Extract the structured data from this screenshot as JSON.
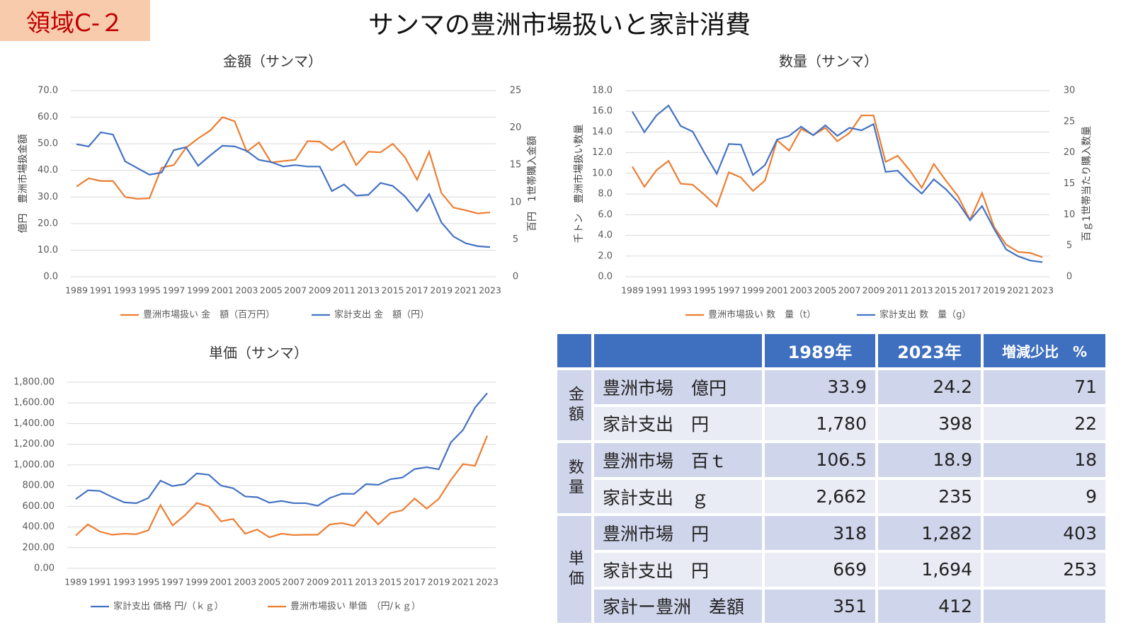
{
  "header": {
    "badge": "領域C-２",
    "title": "サンマの豊洲市場扱いと家計消費"
  },
  "chart_data": [
    {
      "type": "line",
      "title": "金額（サンマ）",
      "y_label": "億円　豊洲市場扱金額",
      "y2_label": "百円　1世帯購入金額",
      "x": [
        1989,
        1990,
        1991,
        1992,
        1993,
        1994,
        1995,
        1996,
        1997,
        1998,
        1999,
        2000,
        2001,
        2002,
        2003,
        2004,
        2005,
        2006,
        2007,
        2008,
        2009,
        2010,
        2011,
        2012,
        2013,
        2014,
        2015,
        2016,
        2017,
        2018,
        2019,
        2020,
        2021,
        2022,
        2023
      ],
      "xlim": [
        1989,
        2023
      ],
      "xticks": [
        1989,
        1991,
        1993,
        1995,
        1997,
        1999,
        2001,
        2003,
        2005,
        2007,
        2009,
        2011,
        2013,
        2015,
        2017,
        2019,
        2021,
        2023
      ],
      "ylim": [
        0,
        70
      ],
      "yticks": [
        {
          "value": 0,
          "label": "0.0"
        },
        {
          "value": 10,
          "label": "10.0"
        },
        {
          "value": 20,
          "label": "20.0"
        },
        {
          "value": 30,
          "label": "30.0"
        },
        {
          "value": 40,
          "label": "40.0"
        },
        {
          "value": 50,
          "label": "50.0"
        },
        {
          "value": 60,
          "label": "60.0"
        },
        {
          "value": 70,
          "label": "70.0"
        }
      ],
      "y2lim": [
        0,
        25
      ],
      "y2ticks": [
        0,
        5,
        10,
        15,
        20,
        25
      ],
      "grid": true,
      "series": [
        {
          "name": "豊洲市場扱い 金　額（百万円）",
          "color": "#ed7d31",
          "values": [
            33.9,
            37,
            36,
            36,
            30,
            29.3,
            29.5,
            41,
            42,
            48.5,
            52,
            55,
            60,
            58.5,
            47,
            50.5,
            43,
            43.5,
            44,
            51,
            50.8,
            47.5,
            51,
            42,
            47,
            46.8,
            50,
            45,
            36.5,
            47,
            31.5,
            26,
            25,
            23.8,
            24.2
          ]
        },
        {
          "name": "家計支出 金　額（円）",
          "color": "#4472c4",
          "axis": "y2",
          "values": [
            17.8,
            17.5,
            19.4,
            19.1,
            15.5,
            14.6,
            13.7,
            14.0,
            17.0,
            17.4,
            14.9,
            16.3,
            17.6,
            17.5,
            16.9,
            15.7,
            15.4,
            14.8,
            15.0,
            14.8,
            14.8,
            11.5,
            12.4,
            10.9,
            11.0,
            12.6,
            12.2,
            10.8,
            8.8,
            11.1,
            7.3,
            5.4,
            4.5,
            4.1,
            3.98
          ]
        }
      ]
    },
    {
      "type": "line",
      "title": "数量（サンマ）",
      "y_label": "千トン　豊洲市場扱い数量",
      "y2_label": "百ｇ1世帯当たり購入数量",
      "x": [
        1989,
        1990,
        1991,
        1992,
        1993,
        1994,
        1995,
        1996,
        1997,
        1998,
        1999,
        2000,
        2001,
        2002,
        2003,
        2004,
        2005,
        2006,
        2007,
        2008,
        2009,
        2010,
        2011,
        2012,
        2013,
        2014,
        2015,
        2016,
        2017,
        2018,
        2019,
        2020,
        2021,
        2022,
        2023
      ],
      "xlim": [
        1989,
        2023
      ],
      "xticks": [
        1989,
        1991,
        1993,
        1995,
        1997,
        1999,
        2001,
        2003,
        2005,
        2007,
        2009,
        2011,
        2013,
        2015,
        2017,
        2019,
        2021,
        2023
      ],
      "ylim": [
        0,
        18
      ],
      "yticks": [
        {
          "value": 0,
          "label": "0.0"
        },
        {
          "value": 2,
          "label": "2.0"
        },
        {
          "value": 4,
          "label": "4.0"
        },
        {
          "value": 6,
          "label": "6.0"
        },
        {
          "value": 8,
          "label": "8.0"
        },
        {
          "value": 10,
          "label": "10.0"
        },
        {
          "value": 12,
          "label": "12.0"
        },
        {
          "value": 14,
          "label": "14.0"
        },
        {
          "value": 16,
          "label": "16.0"
        },
        {
          "value": 18,
          "label": "18.0"
        }
      ],
      "y2lim": [
        0,
        30
      ],
      "y2ticks": [
        0,
        5,
        10,
        15,
        20,
        25,
        30
      ],
      "grid": true,
      "series": [
        {
          "name": "豊洲市場扱い 数　量（t）",
          "color": "#ed7d31",
          "values": [
            10.65,
            8.7,
            10.3,
            11.2,
            9.0,
            8.9,
            7.9,
            6.8,
            10.1,
            9.6,
            8.3,
            9.3,
            13.2,
            12.2,
            14.3,
            13.7,
            14.4,
            13.1,
            13.9,
            15.6,
            15.6,
            11.1,
            11.7,
            10.3,
            8.6,
            10.9,
            9.3,
            7.8,
            5.5,
            8.1,
            4.8,
            3.1,
            2.4,
            2.3,
            1.89
          ]
        },
        {
          "name": "家計支出 数　量（g）",
          "color": "#4472c4",
          "axis": "y2",
          "values": [
            26.62,
            23.3,
            26.0,
            27.6,
            24.3,
            23.4,
            19.9,
            16.6,
            21.4,
            21.3,
            16.4,
            18.0,
            22.1,
            22.7,
            24.2,
            22.8,
            24.4,
            22.7,
            24.0,
            23.6,
            24.6,
            16.9,
            17.1,
            15.1,
            13.4,
            15.7,
            14.1,
            12.0,
            9.1,
            11.4,
            7.7,
            4.4,
            3.3,
            2.6,
            2.35
          ]
        }
      ]
    },
    {
      "type": "line",
      "title": "単価（サンマ）",
      "x": [
        1989,
        1990,
        1991,
        1992,
        1993,
        1994,
        1995,
        1996,
        1997,
        1998,
        1999,
        2000,
        2001,
        2002,
        2003,
        2004,
        2005,
        2006,
        2007,
        2008,
        2009,
        2010,
        2011,
        2012,
        2013,
        2014,
        2015,
        2016,
        2017,
        2018,
        2019,
        2020,
        2021,
        2022,
        2023
      ],
      "xlim": [
        1989,
        2023
      ],
      "xticks": [
        1989,
        1991,
        1993,
        1995,
        1997,
        1999,
        2001,
        2003,
        2005,
        2007,
        2009,
        2011,
        2013,
        2015,
        2017,
        2019,
        2021,
        2023
      ],
      "ylim": [
        0,
        1800
      ],
      "yticks": [
        {
          "value": 0,
          "label": "0.00"
        },
        {
          "value": 200,
          "label": "200.00"
        },
        {
          "value": 400,
          "label": "400.00"
        },
        {
          "value": 600,
          "label": "600.00"
        },
        {
          "value": 800,
          "label": "800.00"
        },
        {
          "value": 1000,
          "label": "1,000.00"
        },
        {
          "value": 1200,
          "label": "1,200.00"
        },
        {
          "value": 1400,
          "label": "1,400.00"
        },
        {
          "value": 1600,
          "label": "1,600.00"
        },
        {
          "value": 1800,
          "label": "1,800.00"
        }
      ],
      "grid": true,
      "series": [
        {
          "name": "家計支出 価格 円/（ｋｇ）",
          "color": "#4472c4",
          "values": [
            669,
            755,
            748,
            690,
            638,
            630,
            680,
            848,
            795,
            815,
            918,
            905,
            800,
            775,
            695,
            688,
            635,
            652,
            630,
            630,
            605,
            680,
            722,
            720,
            815,
            808,
            862,
            878,
            960,
            978,
            958,
            1218,
            1338,
            1555,
            1694
          ]
        },
        {
          "name": "豊洲市場扱い 単価　（円/ｋｇ）",
          "color": "#ed7d31",
          "values": [
            318,
            425,
            355,
            325,
            335,
            330,
            368,
            612,
            415,
            510,
            632,
            598,
            455,
            478,
            335,
            375,
            300,
            335,
            322,
            325,
            325,
            425,
            438,
            410,
            548,
            425,
            535,
            562,
            675,
            578,
            672,
            855,
            1008,
            992,
            1282
          ]
        }
      ]
    }
  ],
  "table": {
    "columns": [
      "1989年",
      "2023年",
      "増減少比　%"
    ],
    "groups": [
      {
        "label": "金額",
        "rows": [
          {
            "name": "豊洲市場　億円",
            "cells": [
              "33.9",
              "24.2",
              "71"
            ]
          },
          {
            "name": "家計支出　円",
            "cells": [
              "1,780",
              "398",
              "22"
            ]
          }
        ]
      },
      {
        "label": "数量",
        "rows": [
          {
            "name": "豊洲市場　百ｔ",
            "cells": [
              "106.5",
              "18.9",
              "18"
            ]
          },
          {
            "name": "家計支出　ｇ",
            "cells": [
              "2,662",
              "235",
              "9"
            ]
          }
        ]
      },
      {
        "label": "単価",
        "rows": [
          {
            "name": "豊洲市場　円",
            "cells": [
              "318",
              "1,282",
              "403"
            ]
          },
          {
            "name": "家計支出　円",
            "cells": [
              "669",
              "1,694",
              "253"
            ]
          },
          {
            "name": "家計ー豊洲　差額",
            "cells": [
              "351",
              "412"
            ]
          }
        ]
      }
    ]
  }
}
